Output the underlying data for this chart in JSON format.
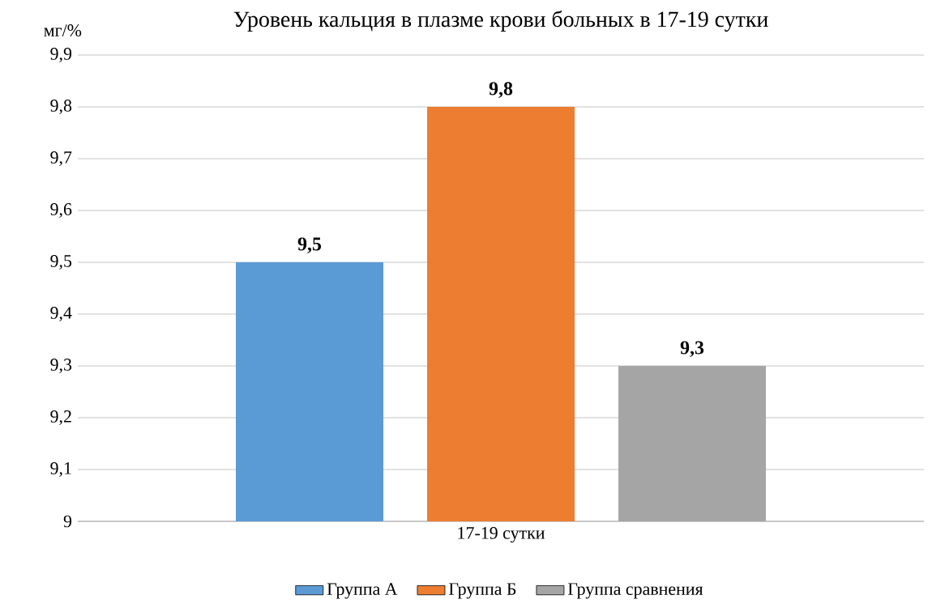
{
  "chart_data": {
    "type": "bar",
    "title": "Уровень кальция в плазме крови больных в 17-19 сутки",
    "ylabel": "мг/%",
    "categories": [
      "17-19 сутки"
    ],
    "series": [
      {
        "name": "Группа А",
        "color": "#5b9bd5",
        "values": [
          9.5
        ],
        "value_labels": [
          "9,5"
        ]
      },
      {
        "name": "Группа Б",
        "color": "#ed7d31",
        "values": [
          9.8
        ],
        "value_labels": [
          "9,8"
        ]
      },
      {
        "name": "Группа сравнения",
        "color": "#a5a5a5",
        "values": [
          9.3
        ],
        "value_labels": [
          "9,3"
        ]
      }
    ],
    "ylim": [
      9,
      9.9
    ],
    "yticks": [
      9,
      {
        "value": 9.1,
        "label": "9,1"
      },
      {
        "value": 9.2,
        "label": "9,2"
      },
      {
        "value": 9.3,
        "label": "9,3"
      },
      {
        "value": 9.4,
        "label": "9,4"
      },
      {
        "value": 9.5,
        "label": "9,5"
      },
      {
        "value": 9.6,
        "label": "9,6"
      },
      {
        "value": 9.7,
        "label": "9,7"
      },
      {
        "value": 9.8,
        "label": "9,8"
      },
      {
        "value": 9.9,
        "label": "9,9"
      }
    ],
    "grid": "y",
    "legend": "bottom"
  }
}
